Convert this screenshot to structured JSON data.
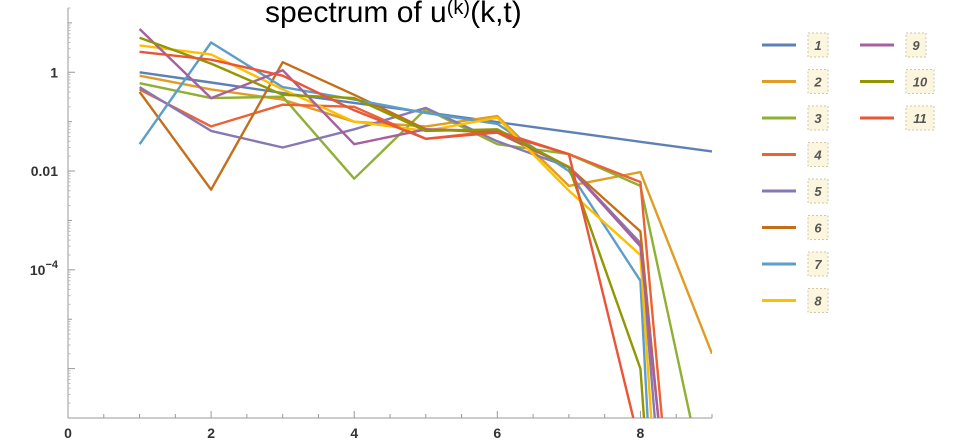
{
  "chart_data": {
    "type": "line",
    "title": "spectrum of u",
    "title_superscript": "(k)",
    "title_suffix": "(k,t)",
    "xlabel": "",
    "ylabel": "",
    "y_scale": "log",
    "xlim": [
      0,
      9
    ],
    "ylim": [
      1e-07,
      20
    ],
    "x_ticks": [
      {
        "value": 0,
        "label": "0"
      },
      {
        "value": 2,
        "label": "2"
      },
      {
        "value": 4,
        "label": "4"
      },
      {
        "value": 6,
        "label": "6"
      },
      {
        "value": 8,
        "label": "8"
      }
    ],
    "y_ticks": [
      {
        "value": 1,
        "label": "1",
        "exp": ""
      },
      {
        "value": 0.01,
        "label": "0.01",
        "exp": ""
      },
      {
        "value": 0.0001,
        "label": "10",
        "exp": "−4"
      }
    ],
    "grid": false,
    "legend_position": "right",
    "series": [
      {
        "name": "1",
        "color": "#5E81B5",
        "points": [
          [
            1,
            1.0
          ],
          [
            2,
            0.62
          ],
          [
            3,
            0.38
          ],
          [
            4,
            0.24
          ],
          [
            5,
            0.155
          ],
          [
            6,
            0.098
          ],
          [
            7,
            0.062
          ],
          [
            8,
            0.039
          ],
          [
            9,
            0.025
          ]
        ]
      },
      {
        "name": "2",
        "color": "#E19C24",
        "points": [
          [
            1,
            0.85
          ],
          [
            2,
            0.45
          ],
          [
            3,
            0.28
          ],
          [
            4,
            0.1
          ],
          [
            5,
            0.08
          ],
          [
            6,
            0.13
          ],
          [
            7,
            0.005
          ],
          [
            8,
            0.0095
          ],
          [
            9,
            2e-06
          ]
        ]
      },
      {
        "name": "3",
        "color": "#8FB032",
        "points": [
          [
            1,
            0.6
          ],
          [
            2,
            0.3
          ],
          [
            3,
            0.32
          ],
          [
            4,
            0.007
          ],
          [
            5,
            0.18
          ],
          [
            6,
            0.035
          ],
          [
            7,
            0.022
          ],
          [
            8,
            0.005
          ],
          [
            8.7,
            1e-07
          ]
        ]
      },
      {
        "name": "4",
        "color": "#EB6235",
        "points": [
          [
            1,
            0.45
          ],
          [
            2,
            0.08
          ],
          [
            3,
            0.22
          ],
          [
            4,
            0.2
          ],
          [
            5,
            0.045
          ],
          [
            6,
            0.065
          ],
          [
            7,
            0.022
          ],
          [
            8,
            0.006
          ],
          [
            8.3,
            1e-07
          ]
        ]
      },
      {
        "name": "5",
        "color": "#8778B3",
        "points": [
          [
            1,
            0.5
          ],
          [
            2,
            0.065
          ],
          [
            3,
            0.03
          ],
          [
            4,
            0.07
          ],
          [
            5,
            0.19
          ],
          [
            6,
            0.04
          ],
          [
            7,
            0.012
          ],
          [
            8,
            0.00035
          ],
          [
            8.2,
            1e-07
          ]
        ]
      },
      {
        "name": "6",
        "color": "#C56E1A",
        "points": [
          [
            1,
            0.4
          ],
          [
            2,
            0.0042
          ],
          [
            3,
            1.6
          ],
          [
            4,
            0.35
          ],
          [
            5,
            0.07
          ],
          [
            6,
            0.06
          ],
          [
            7,
            0.012
          ],
          [
            8,
            0.0006
          ],
          [
            8.25,
            1e-07
          ]
        ]
      },
      {
        "name": "7",
        "color": "#5D9EC7",
        "points": [
          [
            1,
            0.035
          ],
          [
            2,
            4.0
          ],
          [
            3,
            0.5
          ],
          [
            4,
            0.28
          ],
          [
            5,
            0.15
          ],
          [
            6,
            0.09
          ],
          [
            7,
            0.01
          ],
          [
            8,
            6e-05
          ],
          [
            8.1,
            1e-07
          ]
        ]
      },
      {
        "name": "8",
        "color": "#FFBF00",
        "points": [
          [
            1,
            3.5
          ],
          [
            2,
            2.3
          ],
          [
            3,
            0.45
          ],
          [
            4,
            0.1
          ],
          [
            5,
            0.065
          ],
          [
            6,
            0.12
          ],
          [
            7,
            0.004
          ],
          [
            8,
            0.0002
          ],
          [
            8.15,
            1e-07
          ]
        ]
      },
      {
        "name": "9",
        "color": "#A5609D",
        "points": [
          [
            1,
            7.5
          ],
          [
            2,
            0.3
          ],
          [
            3,
            1.1
          ],
          [
            4,
            0.035
          ],
          [
            5,
            0.07
          ],
          [
            6,
            0.065
          ],
          [
            7,
            0.012
          ],
          [
            8,
            0.0003
          ],
          [
            8.25,
            1e-07
          ]
        ]
      },
      {
        "name": "10",
        "color": "#929600",
        "points": [
          [
            1,
            5.0
          ],
          [
            2,
            1.5
          ],
          [
            3,
            0.35
          ],
          [
            4,
            0.3
          ],
          [
            5,
            0.065
          ],
          [
            6,
            0.07
          ],
          [
            7,
            0.012
          ],
          [
            8,
            1e-06
          ],
          [
            8.05,
            1e-07
          ]
        ]
      },
      {
        "name": "11",
        "color": "#E95536",
        "points": [
          [
            1,
            2.6
          ],
          [
            2,
            1.8
          ],
          [
            3,
            0.85
          ],
          [
            4,
            0.17
          ],
          [
            5,
            0.045
          ],
          [
            6,
            0.06
          ],
          [
            7,
            0.022
          ],
          [
            7.9,
            1e-07
          ]
        ]
      }
    ]
  }
}
